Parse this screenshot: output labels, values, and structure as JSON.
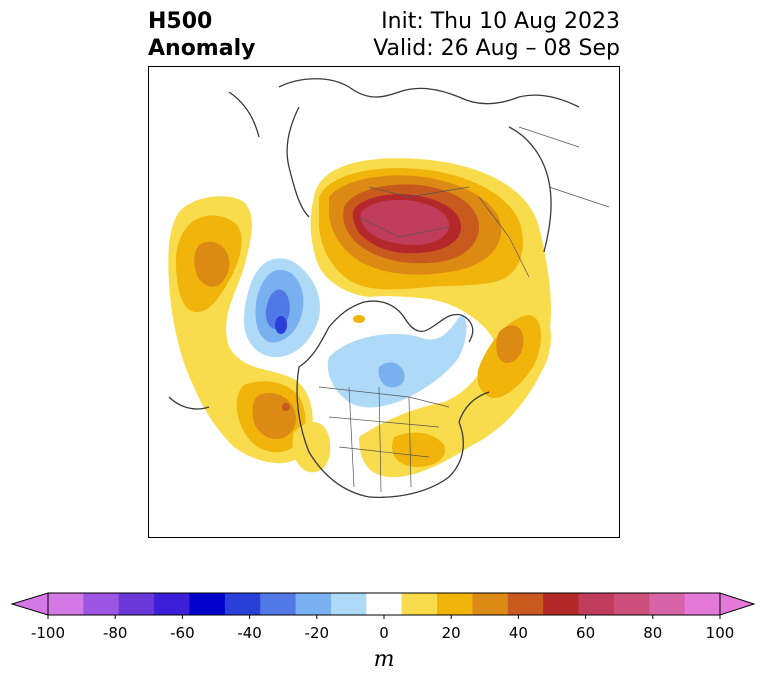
{
  "title": {
    "field": "H500",
    "kind": "Anomaly",
    "init": "Init: Thu 10 Aug 2023",
    "valid": "Valid: 26 Aug – 08 Sep"
  },
  "colorbar": {
    "unit": "m",
    "ticks": [
      "-100",
      "-80",
      "-60",
      "-40",
      "-20",
      "0",
      "20",
      "40",
      "60",
      "80",
      "100"
    ],
    "levels": [
      -100,
      -90,
      -80,
      -70,
      -60,
      -50,
      -40,
      -30,
      -20,
      -10,
      10,
      20,
      30,
      40,
      50,
      60,
      70,
      80,
      90,
      100
    ],
    "colors": [
      "#d478e6",
      "#9c55e0",
      "#6a37d8",
      "#3d1ed8",
      "#0000cc",
      "#2a3fd8",
      "#5078e6",
      "#78b0f0",
      "#aedaf8",
      "#ffffff",
      "#f9dc4c",
      "#f0b40a",
      "#dc8a14",
      "#c85a1e",
      "#b4282a",
      "#c03c5a",
      "#cc4e7a",
      "#d864a8",
      "#e47ad8"
    ]
  },
  "map": {
    "projection": "north polar stereographic",
    "colors": {
      "pos10": "#f9dc4c",
      "pos20": "#f0b40a",
      "pos30": "#dc8a14",
      "pos40": "#c85a1e",
      "pos50": "#b4282a",
      "pos60": "#c03c5a",
      "neg10": "#aedaf8",
      "neg20": "#78b0f0",
      "neg30": "#5078e6",
      "neg40": "#2a3fd8",
      "coast": "#3a3a3a"
    }
  }
}
